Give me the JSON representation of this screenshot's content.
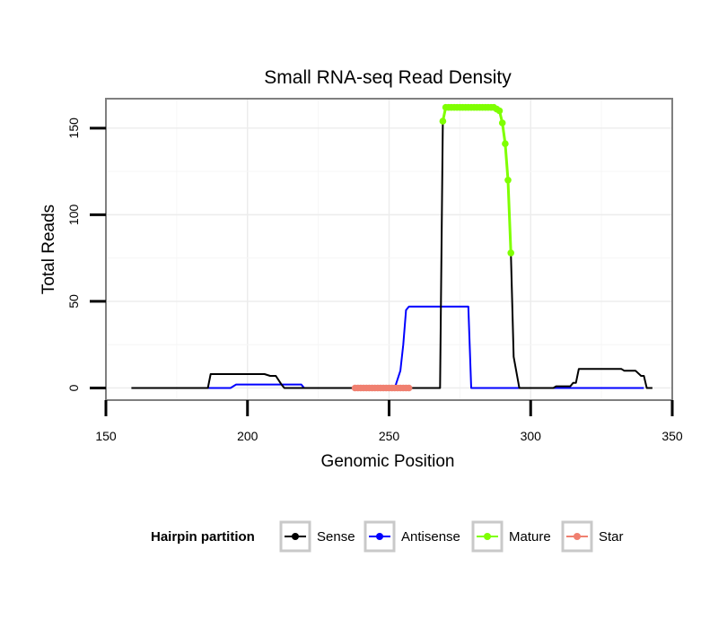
{
  "chart_data": {
    "type": "line",
    "title": "Small RNA-seq Read Density",
    "xlabel": "Genomic Position",
    "ylabel": "Total Reads",
    "xlim": [
      150,
      350
    ],
    "ylim": [
      -7,
      167
    ],
    "x_ticks": [
      150,
      200,
      250,
      300,
      350
    ],
    "y_ticks": [
      0,
      50,
      100,
      150
    ],
    "grid": true,
    "legend_position": "bottom",
    "legend_title": "Hairpin partition",
    "series": [
      {
        "name": "Sense",
        "color": "#000000",
        "points": [
          [
            159,
            0
          ],
          [
            186,
            0
          ],
          [
            187,
            8
          ],
          [
            206,
            8
          ],
          [
            208,
            7
          ],
          [
            210,
            7
          ],
          [
            212,
            2
          ],
          [
            213,
            0
          ],
          [
            237,
            0
          ],
          [
            268,
            0
          ],
          [
            269,
            154
          ],
          [
            270,
            162
          ],
          [
            287,
            162
          ],
          [
            289,
            160
          ],
          [
            290,
            153
          ],
          [
            291,
            141
          ],
          [
            292,
            120
          ],
          [
            293,
            78
          ],
          [
            294,
            18
          ],
          [
            296,
            0
          ],
          [
            308,
            0
          ],
          [
            309,
            1
          ],
          [
            314,
            1
          ],
          [
            315,
            3
          ],
          [
            316,
            3
          ],
          [
            317,
            11
          ],
          [
            332,
            11
          ],
          [
            333,
            10
          ],
          [
            337,
            10
          ],
          [
            339,
            7
          ],
          [
            340,
            7
          ],
          [
            341,
            0
          ],
          [
            343,
            0
          ]
        ]
      },
      {
        "name": "Antisense",
        "color": "#0000ff",
        "points": [
          [
            186,
            0
          ],
          [
            194,
            0
          ],
          [
            196,
            2
          ],
          [
            219,
            2
          ],
          [
            220,
            0
          ],
          [
            252,
            0
          ],
          [
            254,
            10
          ],
          [
            255,
            25
          ],
          [
            256,
            45
          ],
          [
            257,
            47
          ],
          [
            278,
            47
          ],
          [
            279,
            0
          ],
          [
            340,
            0
          ]
        ]
      },
      {
        "name": "Mature",
        "color": "#7fff00",
        "points": [
          [
            269,
            154
          ],
          [
            270,
            162
          ],
          [
            271,
            162
          ],
          [
            272,
            162
          ],
          [
            273,
            162
          ],
          [
            274,
            162
          ],
          [
            275,
            162
          ],
          [
            276,
            162
          ],
          [
            277,
            162
          ],
          [
            278,
            162
          ],
          [
            279,
            162
          ],
          [
            280,
            162
          ],
          [
            281,
            162
          ],
          [
            282,
            162
          ],
          [
            283,
            162
          ],
          [
            284,
            162
          ],
          [
            285,
            162
          ],
          [
            286,
            162
          ],
          [
            287,
            162
          ],
          [
            288,
            161
          ],
          [
            289,
            160
          ],
          [
            290,
            153
          ],
          [
            291,
            141
          ],
          [
            292,
            120
          ],
          [
            293,
            78
          ]
        ]
      },
      {
        "name": "Star",
        "color": "#f08070",
        "points": [
          [
            238,
            0
          ],
          [
            239,
            0
          ],
          [
            240,
            0
          ],
          [
            241,
            0
          ],
          [
            242,
            0
          ],
          [
            243,
            0
          ],
          [
            244,
            0
          ],
          [
            245,
            0
          ],
          [
            246,
            0
          ],
          [
            247,
            0
          ],
          [
            248,
            0
          ],
          [
            249,
            0
          ],
          [
            250,
            0
          ],
          [
            251,
            0
          ],
          [
            252,
            0
          ],
          [
            253,
            0
          ],
          [
            254,
            0
          ],
          [
            255,
            0
          ],
          [
            256,
            0
          ],
          [
            257,
            0
          ]
        ]
      }
    ]
  }
}
